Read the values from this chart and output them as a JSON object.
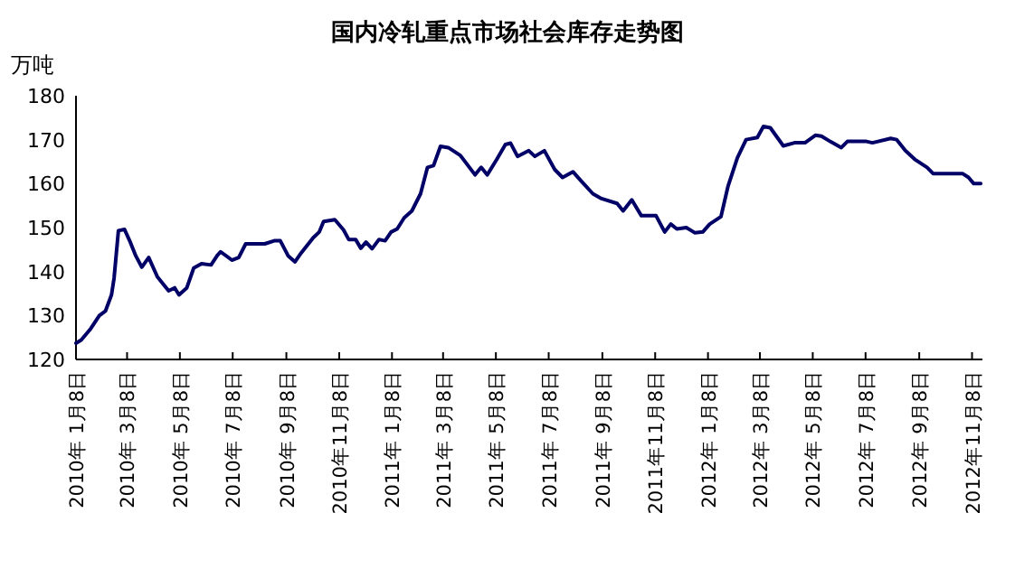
{
  "chart_data": {
    "type": "line",
    "title": "国内冷轧重点市场社会库存走势图",
    "ylabel": "万吨",
    "grid": false,
    "marker": "none",
    "line_style": "solid",
    "ylim": [
      120,
      180
    ],
    "yticks": [
      120,
      130,
      140,
      150,
      160,
      170,
      180
    ],
    "xlim": [
      "2010-01-08",
      "2012-11-20"
    ],
    "xticks": [
      {
        "value": "2010-01-08",
        "label": "2010年 1月8日"
      },
      {
        "value": "2010-03-08",
        "label": "2010年 3月8日"
      },
      {
        "value": "2010-05-08",
        "label": "2010年 5月8日"
      },
      {
        "value": "2010-07-08",
        "label": "2010年 7月8日"
      },
      {
        "value": "2010-09-08",
        "label": "2010年 9月8日"
      },
      {
        "value": "2010-11-08",
        "label": "2010年11月8日"
      },
      {
        "value": "2011-01-08",
        "label": "2011年 1月8日"
      },
      {
        "value": "2011-03-08",
        "label": "2011年 3月8日"
      },
      {
        "value": "2011-05-08",
        "label": "2011年 5月8日"
      },
      {
        "value": "2011-07-08",
        "label": "2011年 7月8日"
      },
      {
        "value": "2011-09-08",
        "label": "2011年 9月8日"
      },
      {
        "value": "2011-11-08",
        "label": "2011年11月8日"
      },
      {
        "value": "2012-01-08",
        "label": "2012年 1月8日"
      },
      {
        "value": "2012-03-08",
        "label": "2012年 3月8日"
      },
      {
        "value": "2012-05-08",
        "label": "2012年 5月8日"
      },
      {
        "value": "2012-07-08",
        "label": "2012年 7月8日"
      },
      {
        "value": "2012-09-08",
        "label": "2012年 9月8日"
      },
      {
        "value": "2012-11-08",
        "label": "2012年11月8日"
      }
    ],
    "series": [
      {
        "color": "#000066",
        "x": [
          "2010-01-08",
          "2010-01-14",
          "2010-01-25",
          "2010-02-04",
          "2010-02-11",
          "2010-02-18",
          "2010-02-21",
          "2010-02-26",
          "2010-03-05",
          "2010-03-11",
          "2010-03-18",
          "2010-03-25",
          "2010-04-02",
          "2010-04-12",
          "2010-04-25",
          "2010-05-02",
          "2010-05-07",
          "2010-05-16",
          "2010-05-24",
          "2010-06-02",
          "2010-06-13",
          "2010-06-20",
          "2010-06-24",
          "2010-07-07",
          "2010-07-15",
          "2010-07-23",
          "2010-08-14",
          "2010-08-25",
          "2010-09-01",
          "2010-09-10",
          "2010-09-18",
          "2010-09-25",
          "2010-10-09",
          "2010-10-16",
          "2010-10-21",
          "2010-11-03",
          "2010-11-13",
          "2010-11-19",
          "2010-11-27",
          "2010-12-03",
          "2010-12-09",
          "2010-12-16",
          "2010-12-24",
          "2010-12-31",
          "2011-01-07",
          "2011-01-14",
          "2011-01-22",
          "2011-01-31",
          "2011-02-10",
          "2011-02-18",
          "2011-02-25",
          "2011-03-05",
          "2011-03-14",
          "2011-03-28",
          "2011-04-14",
          "2011-04-21",
          "2011-04-28",
          "2011-05-09",
          "2011-05-19",
          "2011-05-25",
          "2011-06-02",
          "2011-06-15",
          "2011-06-22",
          "2011-07-03",
          "2011-07-15",
          "2011-07-24",
          "2011-08-05",
          "2011-08-14",
          "2011-08-28",
          "2011-09-07",
          "2011-09-25",
          "2011-10-02",
          "2011-10-12",
          "2011-10-23",
          "2011-11-09",
          "2011-11-19",
          "2011-11-26",
          "2011-12-03",
          "2011-12-14",
          "2011-12-24",
          "2012-01-02",
          "2012-01-10",
          "2012-01-23",
          "2012-01-31",
          "2012-02-11",
          "2012-02-21",
          "2012-03-05",
          "2012-03-12",
          "2012-03-20",
          "2012-04-04",
          "2012-04-17",
          "2012-04-29",
          "2012-05-11",
          "2012-05-18",
          "2012-05-29",
          "2012-06-10",
          "2012-06-17",
          "2012-07-09",
          "2012-07-16",
          "2012-08-06",
          "2012-08-13",
          "2012-08-23",
          "2012-09-03",
          "2012-09-17",
          "2012-09-24",
          "2012-10-28",
          "2012-11-04",
          "2012-11-10",
          "2012-11-18"
        ],
        "values": [
          123.7,
          124.4,
          127,
          130,
          131,
          134.7,
          138.5,
          149.3,
          149.6,
          147,
          143.6,
          141,
          143.2,
          138.8,
          135.6,
          136.3,
          134.7,
          136.3,
          140.8,
          141.8,
          141.5,
          143.6,
          144.5,
          142.6,
          143.2,
          146.3,
          146.3,
          147,
          147,
          143.6,
          142.2,
          144.2,
          147.7,
          149,
          151.4,
          151.8,
          149.5,
          147.3,
          147.3,
          145.3,
          146.7,
          145.2,
          147.3,
          147,
          149,
          149.7,
          152.2,
          153.8,
          157.7,
          163.7,
          164.1,
          168.5,
          168.2,
          166.4,
          162,
          163.7,
          162,
          165.5,
          168.9,
          169.2,
          166.2,
          167.5,
          166.2,
          167.5,
          163.2,
          161.4,
          162.7,
          160.7,
          157.7,
          156.6,
          155.5,
          153.8,
          156.3,
          152.7,
          152.7,
          149,
          150.8,
          149.7,
          150,
          148.8,
          149,
          150.8,
          152.5,
          159.3,
          165.9,
          170,
          170.5,
          173,
          172.7,
          168.6,
          169.3,
          169.3,
          171,
          170.8,
          169.5,
          168.2,
          169.6,
          169.6,
          169.3,
          170.3,
          170,
          167.5,
          165.5,
          163.7,
          162.3,
          162.3,
          161.4,
          160,
          160
        ]
      }
    ]
  }
}
